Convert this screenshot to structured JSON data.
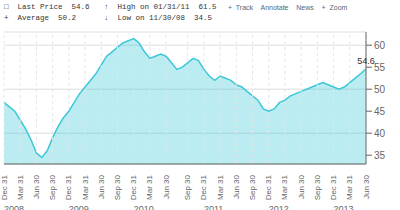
{
  "chart_data": {
    "type": "area",
    "color": "#3cc8d8",
    "grid": true,
    "ylim": [
      33,
      63
    ],
    "yticks": [
      35,
      40,
      45,
      50,
      55,
      60
    ],
    "categories": [
      "Dec 31",
      null,
      null,
      "Mar 31",
      null,
      null,
      "Jun 30",
      null,
      null,
      "Sep 30",
      null,
      null,
      "Dec 31",
      null,
      null,
      "Mar 31",
      null,
      null,
      "Jun 30",
      null,
      null,
      "Sep 30",
      null,
      null,
      "Dec 31",
      null,
      null,
      "Mar 31",
      null,
      null,
      "Jun 30",
      null,
      null,
      null,
      "Sep 30",
      null,
      null,
      "Dec 31",
      null,
      null,
      "Mar 31",
      null,
      null,
      "Jun 30",
      null,
      null,
      "Sep 30",
      null,
      null,
      "Dec 31",
      null,
      null,
      "Mar 31",
      null,
      null,
      "Jun 30",
      null,
      null,
      "Sep 30",
      null,
      null,
      "Dec 31",
      null,
      null,
      "Mar 31",
      null,
      null,
      "Jun 30"
    ],
    "year_labels": [
      "2008",
      null,
      null,
      null,
      null,
      null,
      null,
      null,
      null,
      null,
      null,
      null,
      "2009",
      null,
      null,
      null,
      null,
      null,
      null,
      null,
      null,
      null,
      null,
      null,
      "2010",
      null,
      null,
      null,
      null,
      null,
      null,
      null,
      null,
      null,
      null,
      null,
      null,
      "2011",
      null,
      null,
      null,
      null,
      null,
      null,
      null,
      null,
      null,
      null,
      null,
      "2012",
      null,
      null,
      null,
      null,
      null,
      null,
      null,
      null,
      null,
      null,
      null,
      "2013",
      null,
      null,
      null,
      null,
      null,
      null
    ],
    "values": [
      47.0,
      46.0,
      45.0,
      43.0,
      41.0,
      38.5,
      35.5,
      34.5,
      36.0,
      39.0,
      41.5,
      43.5,
      45.0,
      47.0,
      49.0,
      50.5,
      52.0,
      53.5,
      55.5,
      57.5,
      58.5,
      59.5,
      60.5,
      61.0,
      61.5,
      60.5,
      58.5,
      57.0,
      57.5,
      58.0,
      57.5,
      56.0,
      54.5,
      55.0,
      56.0,
      57.0,
      56.5,
      54.5,
      53.0,
      52.0,
      53.0,
      52.5,
      52.0,
      51.0,
      50.5,
      49.5,
      48.5,
      47.5,
      45.5,
      45.0,
      45.5,
      47.0,
      47.5,
      48.5,
      49.0,
      49.5,
      50.0,
      50.5,
      51.0,
      51.5,
      51.0,
      50.5,
      50.0,
      50.5,
      51.5,
      52.5,
      53.5,
      54.6
    ],
    "annotations": [
      {
        "text": "□  Last Price",
        "value": 54.6
      },
      {
        "text": "↑  High on 01/31/11",
        "value": 61.5
      },
      {
        "text": "+  Average",
        "value": 50.2
      },
      {
        "text": "↓  Low on 11/30/08",
        "value": 34.5
      },
      {
        "text": "+  Track    Annotate    News    +  Zoom"
      },
      {
        "text": "54.6",
        "y": 54.6
      }
    ]
  }
}
